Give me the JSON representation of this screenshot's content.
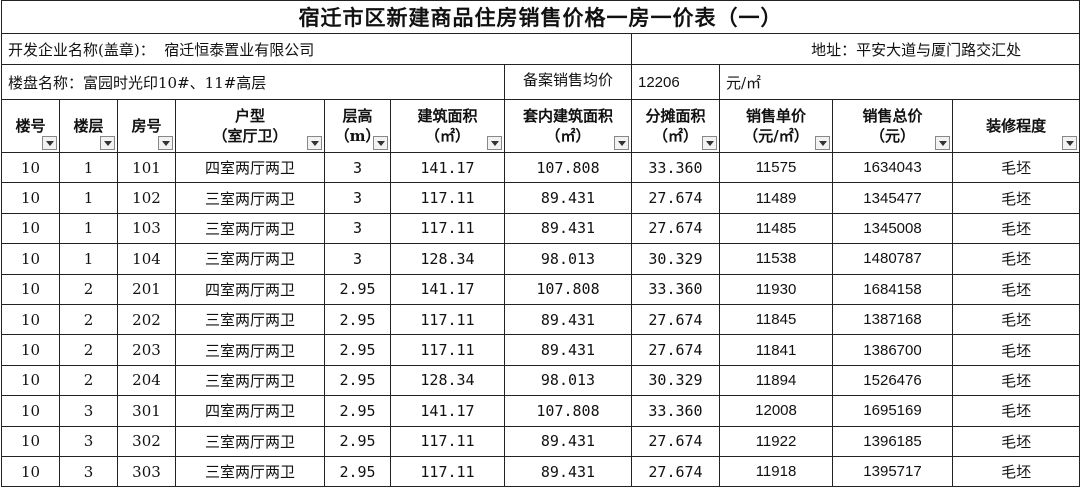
{
  "title": "宿迁市区新建商品住房销售价格一房一价表（一）",
  "developer_label": "开发企业名称(盖章)：",
  "developer_name": "宿迁恒泰置业有限公司",
  "address": "地址：平安大道与厦门路交汇处",
  "project_label": "楼盘名称：富园时光印10#、11#高层",
  "filed_price_label": "备案销售均价",
  "filed_price_value": "12206",
  "filed_price_unit": "元/㎡",
  "headers": [
    {
      "l1": "楼号",
      "l2": ""
    },
    {
      "l1": "楼层",
      "l2": ""
    },
    {
      "l1": "房号",
      "l2": ""
    },
    {
      "l1": "户型",
      "l2": "（室厅卫）"
    },
    {
      "l1": "层高",
      "l2": "（m）"
    },
    {
      "l1": "建筑面积",
      "l2": "（㎡）"
    },
    {
      "l1": "套内建筑面积",
      "l2": "（㎡）"
    },
    {
      "l1": "分摊面积",
      "l2": "（㎡）"
    },
    {
      "l1": "销售单价",
      "l2": "（元/㎡）"
    },
    {
      "l1": "销售总价",
      "l2": "（元）"
    },
    {
      "l1": "装修程度",
      "l2": ""
    }
  ],
  "rows": [
    [
      "10",
      "1",
      "101",
      "四室两厅两卫",
      "3",
      "141.17",
      "107.808",
      "33.360",
      "11575",
      "1634043",
      "毛坯"
    ],
    [
      "10",
      "1",
      "102",
      "三室两厅两卫",
      "3",
      "117.11",
      "89.431",
      "27.674",
      "11489",
      "1345477",
      "毛坯"
    ],
    [
      "10",
      "1",
      "103",
      "三室两厅两卫",
      "3",
      "117.11",
      "89.431",
      "27.674",
      "11485",
      "1345008",
      "毛坯"
    ],
    [
      "10",
      "1",
      "104",
      "三室两厅两卫",
      "3",
      "128.34",
      "98.013",
      "30.329",
      "11538",
      "1480787",
      "毛坯"
    ],
    [
      "10",
      "2",
      "201",
      "四室两厅两卫",
      "2.95",
      "141.17",
      "107.808",
      "33.360",
      "11930",
      "1684158",
      "毛坯"
    ],
    [
      "10",
      "2",
      "202",
      "三室两厅两卫",
      "2.95",
      "117.11",
      "89.431",
      "27.674",
      "11845",
      "1387168",
      "毛坯"
    ],
    [
      "10",
      "2",
      "203",
      "三室两厅两卫",
      "2.95",
      "117.11",
      "89.431",
      "27.674",
      "11841",
      "1386700",
      "毛坯"
    ],
    [
      "10",
      "2",
      "204",
      "三室两厅两卫",
      "2.95",
      "128.34",
      "98.013",
      "30.329",
      "11894",
      "1526476",
      "毛坯"
    ],
    [
      "10",
      "3",
      "301",
      "四室两厅两卫",
      "2.95",
      "141.17",
      "107.808",
      "33.360",
      "12008",
      "1695169",
      "毛坯"
    ],
    [
      "10",
      "3",
      "302",
      "三室两厅两卫",
      "2.95",
      "117.11",
      "89.431",
      "27.674",
      "11922",
      "1396185",
      "毛坯"
    ],
    [
      "10",
      "3",
      "303",
      "三室两厅两卫",
      "2.95",
      "117.11",
      "89.431",
      "27.674",
      "11918",
      "1395717",
      "毛坯"
    ]
  ]
}
